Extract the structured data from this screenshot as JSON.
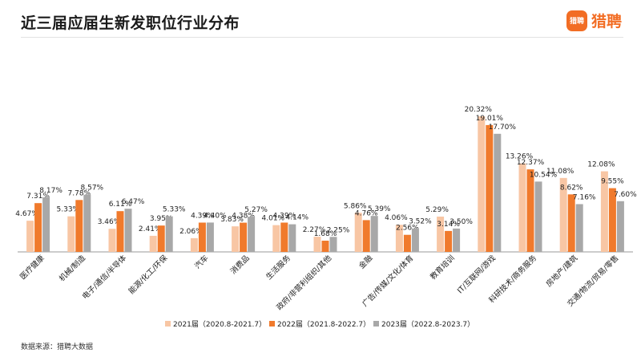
{
  "title": "近三届应届生新发职位行业分布",
  "logo": {
    "badge_text": "猎聘",
    "text": "猎聘",
    "color": "#f26d24"
  },
  "source": "数据来源：猎聘大数据",
  "chart_data": {
    "type": "bar",
    "title": "近三届应届生新发职位行业分布",
    "xlabel": "",
    "ylabel": "",
    "ylim": [
      0,
      22
    ],
    "grid": false,
    "legend_position": "bottom",
    "categories": [
      "医疗健康",
      "机械制造",
      "电子通信半导体",
      "能源化工环保",
      "汽车",
      "消费品",
      "生活服务",
      "政府非营利组织其他",
      "金融",
      "广告传媒文化体育",
      "教育培训",
      "IT互联网游戏",
      "科研技术商务服务",
      "房地产建筑",
      "交通物流贸易零售"
    ],
    "category_labels": [
      "医疗健康",
      "机械/制造",
      "电子/通信/半导体",
      "能源/化工/环保",
      "汽车",
      "消费品",
      "生活服务",
      "政府/非营利组织/其他",
      "金融",
      "广告/传媒/文化/体育",
      "教育培训",
      "IT/互联网/游戏",
      "科研技术/商务服务",
      "房地产/建筑",
      "交通/物流/贸易/零售"
    ],
    "series": [
      {
        "name": "2021届（2020.8-2021.7）",
        "color": "#f8c6a4",
        "values": [
          4.67,
          5.33,
          3.46,
          2.41,
          2.06,
          3.83,
          4.01,
          2.27,
          5.86,
          4.06,
          5.29,
          20.32,
          13.26,
          11.08,
          12.08
        ],
        "labels": [
          "4.67%",
          "5.33%",
          "3.46%",
          "2.41%",
          "2.06%",
          "3.83%",
          "4.01%",
          "2.27%",
          "5.86%",
          "4.06%",
          "5.29%",
          "20.32%",
          "13.26%",
          "11.08%",
          "12.08%"
        ]
      },
      {
        "name": "2022届（2021.8-2022.7）",
        "color": "#f07a2c",
        "values": [
          7.31,
          7.78,
          6.11,
          3.95,
          4.39,
          4.38,
          4.39,
          1.68,
          4.76,
          2.56,
          3.14,
          19.01,
          12.37,
          8.62,
          9.55
        ],
        "labels": [
          "7.31%",
          "7.78%",
          "6.11%",
          "3.95%",
          "4.39%",
          "4.38%",
          "4.39%",
          "1.68%",
          "4.76%",
          "2.56%",
          "3.14%",
          "19.01%",
          "12.37%",
          "8.62%",
          "9.55%"
        ]
      },
      {
        "name": "2023届（2022.8-2023.7）",
        "color": "#a8a8a8",
        "values": [
          8.17,
          8.57,
          6.47,
          5.33,
          4.4,
          5.27,
          4.14,
          2.25,
          5.39,
          3.52,
          3.5,
          17.7,
          10.54,
          7.16,
          7.6
        ],
        "labels": [
          "8.17%",
          "8.57%",
          "6.47%",
          "5.33%",
          "4.40%",
          "5.27%",
          "4.14%",
          "2.25%",
          "5.39%",
          "3.52%",
          "3.50%",
          "17.70%",
          "10.54%",
          "7.16%",
          "7.60%"
        ]
      }
    ]
  }
}
